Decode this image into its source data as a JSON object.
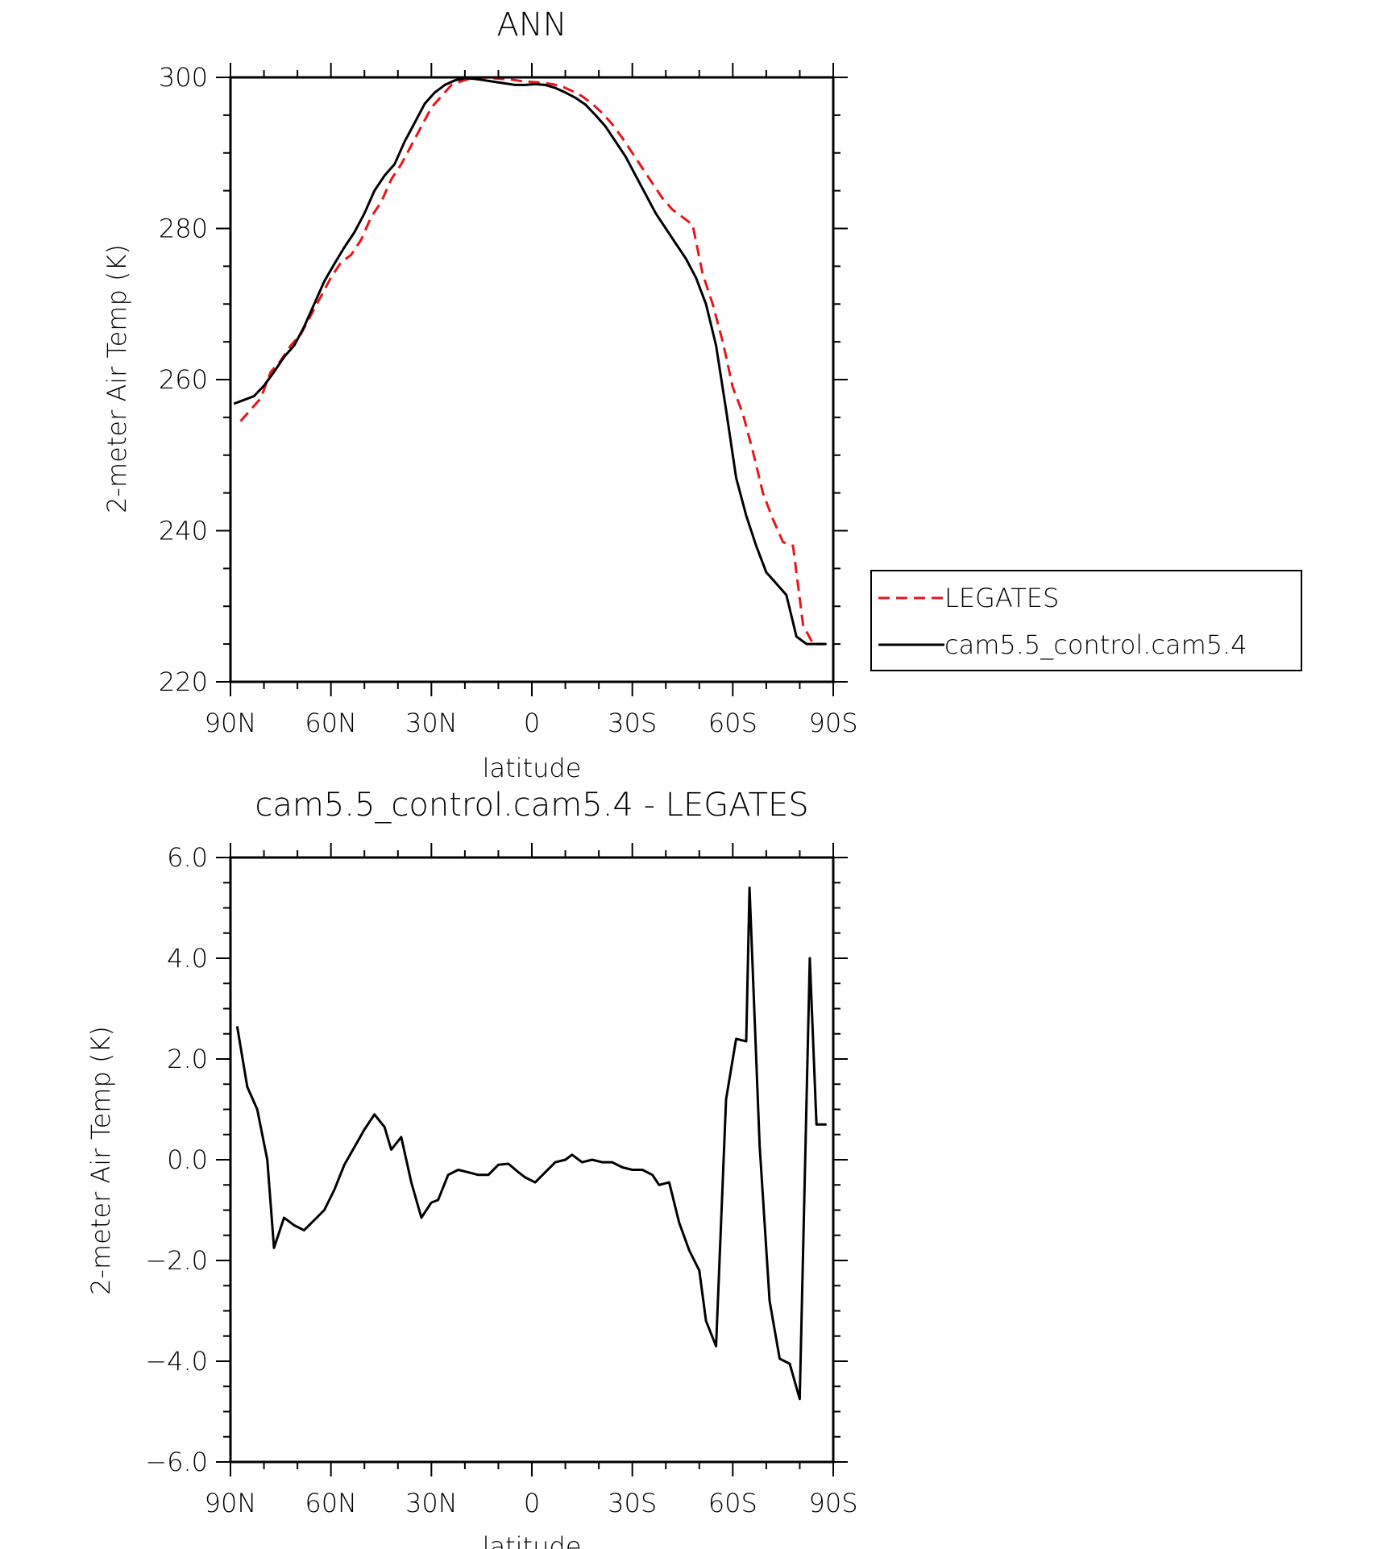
{
  "colors": {
    "obs": "#e8141b",
    "model": "#000000",
    "axis": "#000000"
  },
  "chart_data": [
    {
      "type": "line",
      "title": "ANN",
      "xlabel": "latitude",
      "ylabel": "2-meter Air Temp (K)",
      "xlim": [
        -90,
        90
      ],
      "ylim": [
        220,
        300
      ],
      "xticks": [
        -90,
        -60,
        -30,
        0,
        30,
        60,
        90
      ],
      "xtick_labels": [
        "90N",
        "60N",
        "30N",
        "0",
        "30S",
        "60S",
        "90S"
      ],
      "yticks": [
        220,
        240,
        260,
        280,
        300
      ],
      "ytick_labels": [
        "220",
        "240",
        "260",
        "280",
        "300"
      ],
      "grid": false,
      "legend_position": "right",
      "series": [
        {
          "name": "LEGATES",
          "style": "dashed",
          "color": "#e8141b",
          "x": [
            -87,
            -84,
            -81,
            -78,
            -75,
            -72,
            -69,
            -66,
            -63,
            -60,
            -57,
            -54,
            -51,
            -48,
            -45,
            -42,
            -39,
            -36,
            -33,
            -30,
            -27,
            -24,
            -21,
            -18,
            -15,
            -12,
            -9,
            -6,
            -3,
            0,
            3,
            6,
            9,
            12,
            15,
            18,
            21,
            24,
            27,
            30,
            33,
            36,
            39,
            42,
            45,
            48,
            51,
            54,
            57,
            60,
            63,
            66,
            69,
            72,
            75,
            78,
            81,
            84,
            87
          ],
          "values": [
            254.5,
            256.0,
            257.5,
            261.0,
            262.5,
            264.5,
            266.0,
            268.5,
            271.0,
            273.5,
            275.5,
            276.5,
            278.5,
            281.5,
            283.5,
            286.5,
            288.5,
            291.0,
            293.5,
            296.0,
            297.5,
            299.0,
            299.5,
            299.9,
            300.0,
            299.9,
            299.8,
            299.7,
            299.5,
            299.4,
            299.3,
            299.1,
            298.8,
            298.2,
            297.5,
            296.5,
            295.3,
            293.8,
            292.0,
            290.0,
            288.0,
            286.0,
            284.0,
            282.5,
            281.5,
            280.5,
            274.0,
            270.0,
            265.0,
            259.0,
            255.5,
            250.5,
            245.0,
            241.5,
            238.5,
            238.0,
            227.5,
            225.0,
            225.0
          ]
        },
        {
          "name": "cam5.5_control.cam5.4",
          "style": "solid",
          "color": "#000000",
          "x": [
            -89,
            -86,
            -83,
            -80,
            -77,
            -74,
            -71,
            -68,
            -65,
            -62,
            -59,
            -56,
            -53,
            -50,
            -47,
            -44,
            -41,
            -38,
            -35,
            -32,
            -29,
            -26,
            -23,
            -20,
            -17,
            -14,
            -11,
            -8,
            -5,
            -2,
            1,
            4,
            7,
            10,
            13,
            16,
            19,
            22,
            25,
            28,
            31,
            34,
            37,
            40,
            43,
            46,
            49,
            52,
            55,
            58,
            61,
            64,
            67,
            70,
            73,
            76,
            79,
            82,
            85,
            88
          ],
          "values": [
            256.8,
            257.3,
            257.8,
            259.2,
            261.0,
            263.0,
            264.5,
            267.0,
            270.0,
            273.0,
            275.3,
            277.5,
            279.5,
            282.0,
            285.0,
            287.0,
            288.5,
            291.5,
            294.0,
            296.5,
            298.0,
            299.0,
            299.6,
            299.9,
            299.8,
            299.6,
            299.4,
            299.2,
            299.0,
            299.0,
            299.1,
            299.0,
            298.6,
            298.0,
            297.3,
            296.4,
            295.0,
            293.5,
            291.5,
            289.5,
            287.0,
            284.5,
            282.0,
            280.0,
            278.0,
            276.0,
            273.5,
            270.0,
            264.5,
            256.0,
            247.0,
            242.0,
            238.0,
            234.5,
            233.0,
            231.5,
            226.0,
            225.0,
            225.0,
            225.0
          ]
        }
      ]
    },
    {
      "type": "line",
      "title": "cam5.5_control.cam5.4 - LEGATES",
      "xlabel": "latitude",
      "ylabel": "2-meter Air Temp (K)",
      "xlim": [
        -90,
        90
      ],
      "ylim": [
        -6.0,
        6.0
      ],
      "xticks": [
        -90,
        -60,
        -30,
        0,
        30,
        60,
        90
      ],
      "xtick_labels": [
        "90N",
        "60N",
        "30N",
        "0",
        "30S",
        "60S",
        "90S"
      ],
      "yticks": [
        -6.0,
        -4.0,
        -2.0,
        0.0,
        2.0,
        4.0,
        6.0
      ],
      "ytick_labels": [
        "−6.0",
        "−4.0",
        "−2.0",
        "0.0",
        "2.0",
        "4.0",
        "6.0"
      ],
      "grid": false,
      "series": [
        {
          "color": "#000000",
          "style": "solid",
          "x": [
            -88,
            -85,
            -82,
            -79,
            -77,
            -74,
            -71,
            -68,
            -65,
            -62,
            -59,
            -56,
            -53,
            -50,
            -47,
            -44,
            -42,
            -39,
            -36,
            -33,
            -30,
            -28,
            -25,
            -22,
            -19,
            -16,
            -13,
            -10,
            -7,
            -4,
            -2,
            1,
            4,
            7,
            10,
            12,
            15,
            18,
            21,
            24,
            27,
            30,
            33,
            36,
            38,
            41,
            44,
            47,
            50,
            52,
            55,
            58,
            61,
            64,
            65,
            68,
            71,
            74,
            77,
            80,
            83,
            85,
            88
          ],
          "values": [
            2.65,
            1.45,
            1.0,
            0.0,
            -1.75,
            -1.15,
            -1.3,
            -1.4,
            -1.2,
            -1.0,
            -0.6,
            -0.1,
            0.25,
            0.6,
            0.9,
            0.65,
            0.2,
            0.45,
            -0.45,
            -1.15,
            -0.85,
            -0.8,
            -0.3,
            -0.2,
            -0.25,
            -0.3,
            -0.3,
            -0.1,
            -0.08,
            -0.25,
            -0.35,
            -0.45,
            -0.25,
            -0.05,
            0.0,
            0.1,
            -0.05,
            0.0,
            -0.05,
            -0.05,
            -0.15,
            -0.2,
            -0.2,
            -0.3,
            -0.5,
            -0.45,
            -1.25,
            -1.8,
            -2.2,
            -3.2,
            -3.7,
            1.2,
            2.4,
            2.35,
            5.4,
            0.3,
            -2.8,
            -3.95,
            -4.05,
            -4.75,
            4.0,
            0.7,
            0.7
          ]
        }
      ]
    }
  ]
}
